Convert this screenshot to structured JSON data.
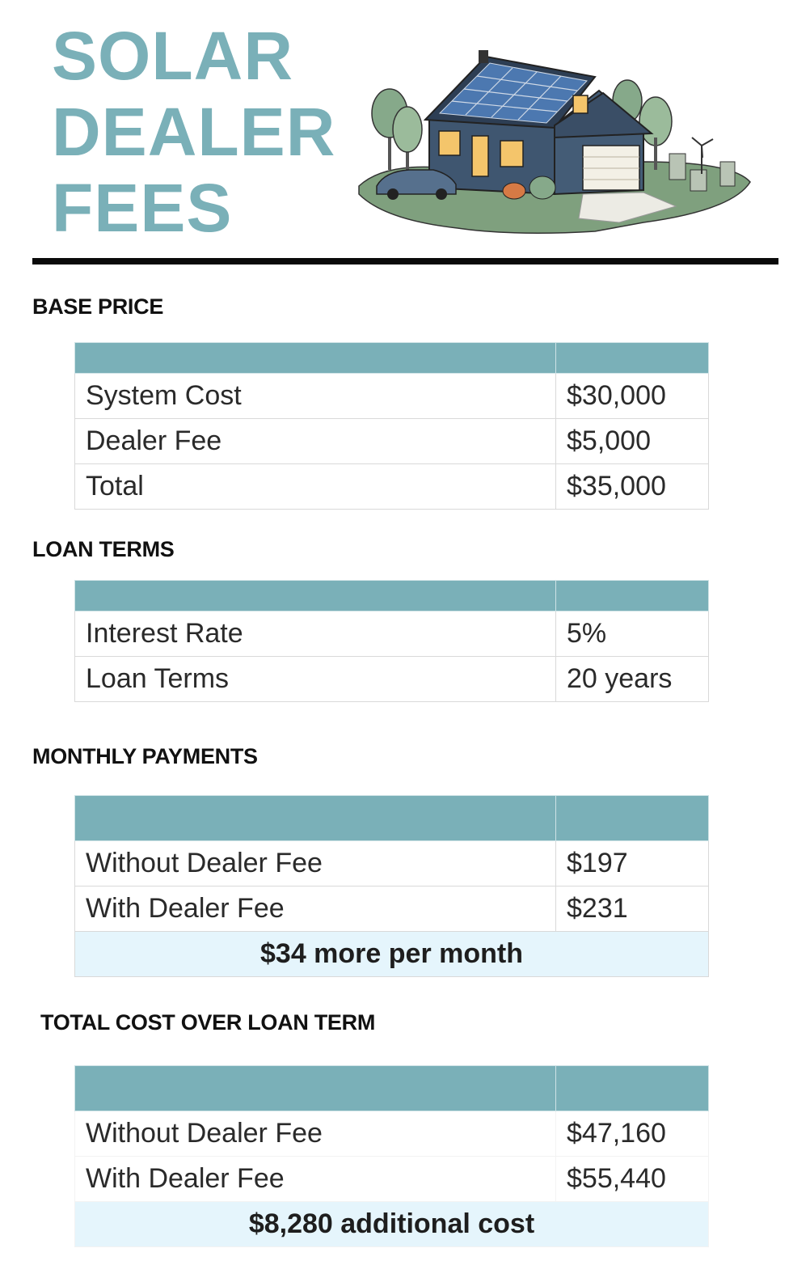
{
  "header": {
    "title_lines": [
      "SOLAR",
      "DEALER",
      "FEES"
    ]
  },
  "colors": {
    "accent": "#7ab0b8",
    "summary_bg": "#e5f5fc",
    "rule": "#0a0a0a"
  },
  "sections": {
    "base_price": {
      "label": "BASE PRICE",
      "rows": [
        {
          "label": "System Cost",
          "value": "$30,000"
        },
        {
          "label": "Dealer Fee",
          "value": "$5,000"
        },
        {
          "label": "Total",
          "value": "$35,000"
        }
      ]
    },
    "loan_terms": {
      "label": "LOAN TERMS",
      "rows": [
        {
          "label": "Interest Rate",
          "value": "5%"
        },
        {
          "label": "Loan Terms",
          "value": "20 years"
        }
      ]
    },
    "monthly_payments": {
      "label": "MONTHLY PAYMENTS",
      "rows": [
        {
          "label": "Without Dealer Fee",
          "value": "$197"
        },
        {
          "label": "With Dealer Fee",
          "value": "$231"
        }
      ],
      "summary": "$34 more per month"
    },
    "total_cost": {
      "label": "TOTAL COST OVER LOAN TERM",
      "rows": [
        {
          "label": "Without Dealer Fee",
          "value": "$47,160"
        },
        {
          "label": "With Dealer Fee",
          "value": "$55,440"
        }
      ],
      "summary": "$8,280 additional cost"
    }
  }
}
